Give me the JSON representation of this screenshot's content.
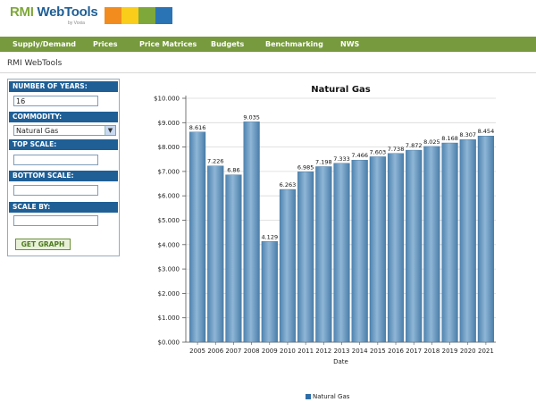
{
  "header": {
    "logo_rmi": "RMI",
    "logo_webtools": "WebTools",
    "logo_sub": "by Voxia",
    "color_blocks": [
      "#f28c1e",
      "#f9cd1a",
      "#7ea83a",
      "#2a74b5"
    ]
  },
  "nav": {
    "items": [
      "Supply/Demand",
      "Prices",
      "Price Matrices",
      "Budgets",
      "Benchmarking",
      "NWS"
    ]
  },
  "breadcrumb": "RMI WebTools",
  "form": {
    "years_label": "NUMBER OF YEARS:",
    "years_value": "16",
    "commodity_label": "COMMODITY:",
    "commodity_value": "Natural Gas",
    "top_scale_label": "TOP SCALE:",
    "top_scale_value": "",
    "bottom_scale_label": "BOTTOM SCALE:",
    "bottom_scale_value": "",
    "scale_by_label": "SCALE BY:",
    "scale_by_value": "",
    "button_label": "GET GRAPH"
  },
  "chart_data": {
    "type": "bar",
    "title": "Natural Gas",
    "xlabel": "Date",
    "ylabel": "",
    "ylim": [
      0,
      10
    ],
    "yticks": [
      "$0.000",
      "$1.000",
      "$2.000",
      "$3.000",
      "$4.000",
      "$5.000",
      "$6.000",
      "$7.000",
      "$8.000",
      "$9.000",
      "$10.000"
    ],
    "categories": [
      "2005",
      "2006",
      "2007",
      "2008",
      "2009",
      "2010",
      "2011",
      "2012",
      "2013",
      "2014",
      "2015",
      "2016",
      "2017",
      "2018",
      "2019",
      "2020",
      "2021"
    ],
    "series": [
      {
        "name": "Natural Gas",
        "values": [
          8.616,
          7.226,
          6.86,
          9.035,
          4.129,
          6.263,
          6.985,
          7.198,
          7.333,
          7.466,
          7.603,
          7.738,
          7.872,
          8.025,
          8.168,
          8.307,
          8.454
        ],
        "labels": [
          "8.616",
          "7.226",
          "6.86",
          "9.035",
          "4.129",
          "6.263",
          "6.985",
          "7.198",
          "7.333",
          "7.466",
          "7.603",
          "7.738",
          "7.872",
          "8.025",
          "8.168",
          "8.307",
          "8.454"
        ]
      }
    ],
    "grid": true,
    "legend": "bottom-center",
    "bar_color": "#6f9fc6"
  }
}
